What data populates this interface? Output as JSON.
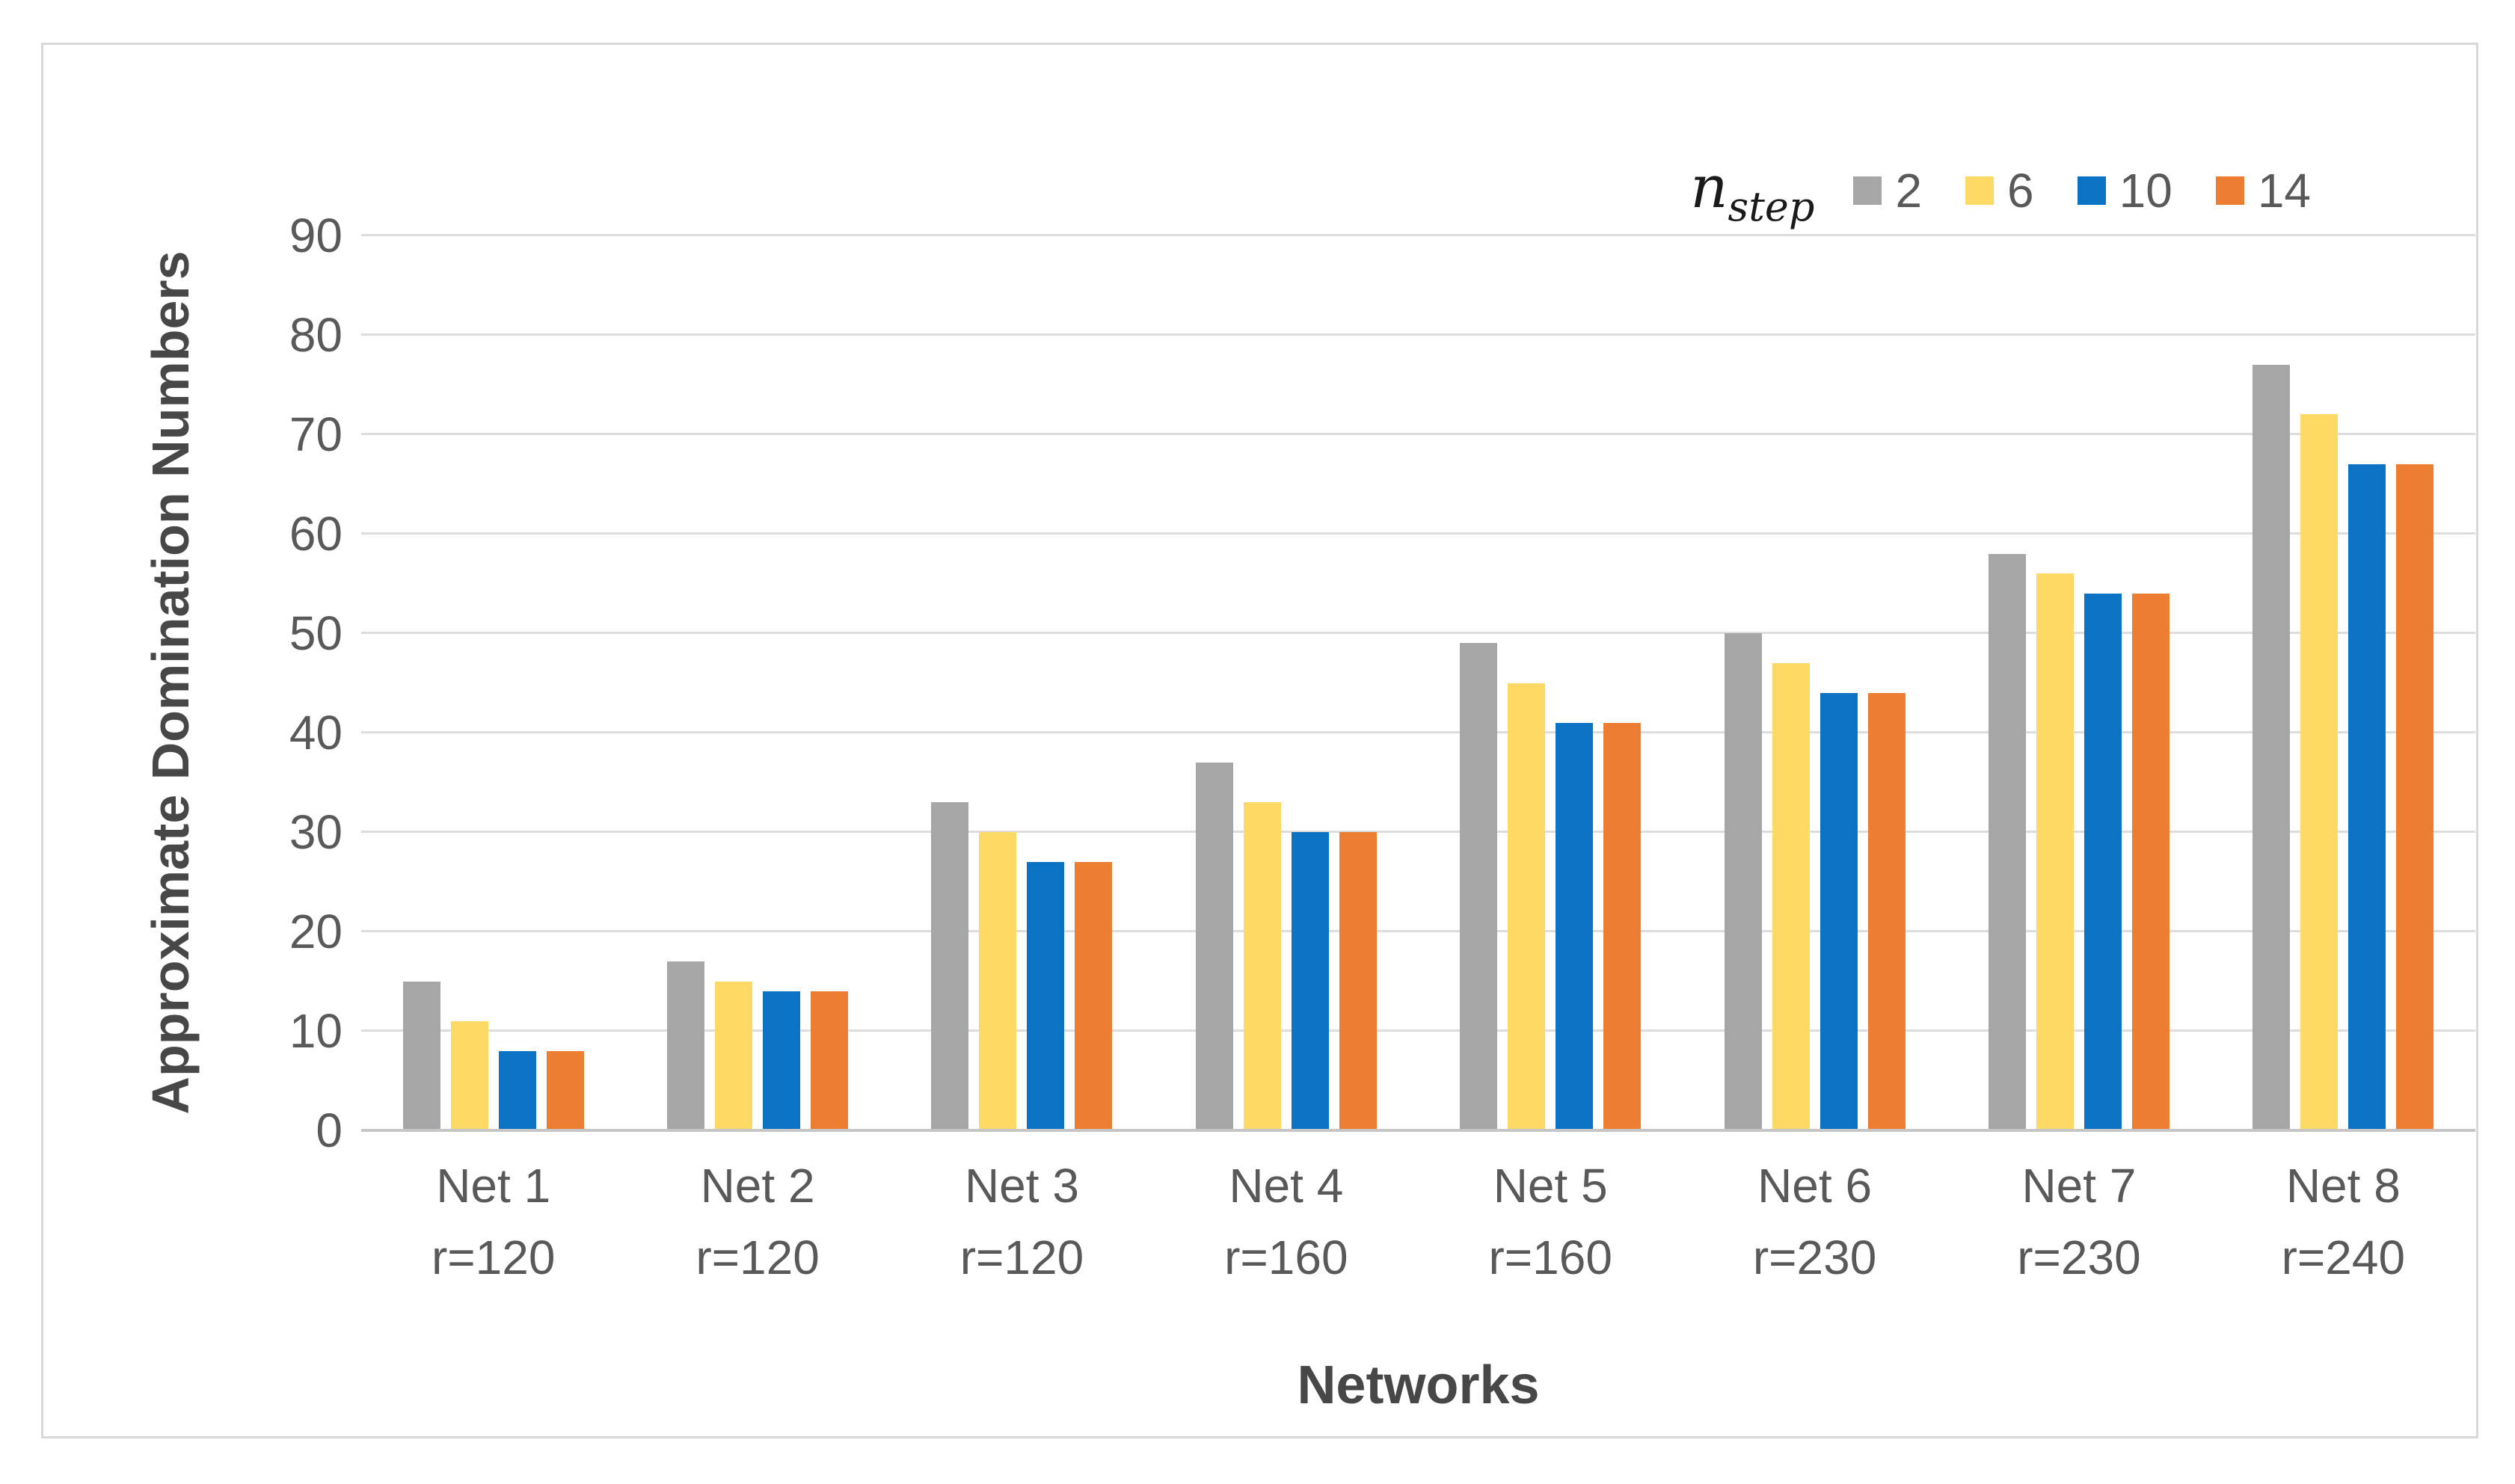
{
  "chart_data": {
    "type": "bar",
    "title": "",
    "xlabel": "Networks",
    "ylabel": "Approximate Domination Numbers",
    "legend_title_base": "n",
    "legend_title_sub": "step",
    "legend_position": "top-right",
    "grid": true,
    "ylim": [
      0,
      90
    ],
    "yticks": [
      0,
      10,
      20,
      30,
      40,
      50,
      60,
      70,
      80,
      90
    ],
    "categories": [
      "Net 1",
      "Net 2",
      "Net 3",
      "Net 4",
      "Net 5",
      "Net 6",
      "Net 7",
      "Net 8"
    ],
    "category_sublabels": [
      "r=120",
      "r=120",
      "r=120",
      "r=160",
      "r=160",
      "r=230",
      "r=230",
      "r=240"
    ],
    "series": [
      {
        "name": "2",
        "color": "#A6A6A6",
        "values": [
          15,
          17,
          33,
          37,
          49,
          50,
          58,
          77
        ]
      },
      {
        "name": "6",
        "color": "#FFD966",
        "values": [
          11,
          15,
          30,
          33,
          45,
          47,
          56,
          72
        ]
      },
      {
        "name": "10",
        "color": "#0C72C4",
        "values": [
          8,
          14,
          27,
          30,
          41,
          44,
          54,
          67
        ]
      },
      {
        "name": "14",
        "color": "#ED7D31",
        "values": [
          8,
          14,
          27,
          30,
          41,
          44,
          54,
          67
        ]
      }
    ]
  },
  "style_colors": {
    "frame_border": "#D9D9D9",
    "gridline": "#DDDDDD",
    "axis_line": "#C6C6C6",
    "tick_text": "#595959",
    "title_text": "#474747"
  }
}
